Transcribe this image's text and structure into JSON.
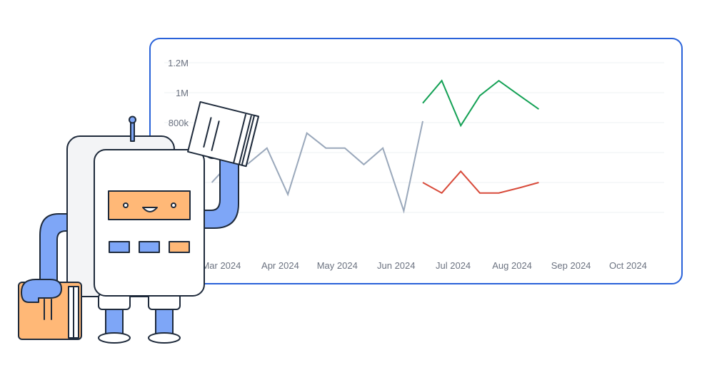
{
  "chart_data": {
    "type": "line",
    "title": "",
    "xlabel": "",
    "ylabel": "",
    "y_ticks": [
      "1.2M",
      "1M",
      "800k"
    ],
    "x_ticks": [
      "Mar 2024",
      "Apr 2024",
      "May 2024",
      "Jun 2024",
      "Jul 2024",
      "Aug 2024",
      "Sep 2024",
      "Oct 2024"
    ],
    "ylim": [
      0,
      1200000
    ],
    "grid": true,
    "legend": "none",
    "series": [
      {
        "color": "#9aa8bb",
        "points": [
          [
            "2024-02-25",
            400000
          ],
          [
            "2024-03-05",
            525000
          ],
          [
            "2024-03-15",
            525000
          ],
          [
            "2024-03-25",
            630000
          ],
          [
            "2024-04-05",
            320000
          ],
          [
            "2024-04-15",
            730000
          ],
          [
            "2024-04-25",
            630000
          ],
          [
            "2024-05-05",
            630000
          ],
          [
            "2024-05-15",
            520000
          ],
          [
            "2024-05-25",
            630000
          ],
          [
            "2024-06-05",
            210000
          ],
          [
            "2024-06-15",
            810000
          ]
        ]
      },
      {
        "color": "#14a155",
        "points": [
          [
            "2024-06-15",
            930000
          ],
          [
            "2024-06-25",
            1080000
          ],
          [
            "2024-07-05",
            780000
          ],
          [
            "2024-07-15",
            980000
          ],
          [
            "2024-07-25",
            1080000
          ],
          [
            "2024-08-05",
            980000
          ],
          [
            "2024-08-15",
            890000
          ]
        ]
      },
      {
        "color": "#d84a3a",
        "points": [
          [
            "2024-06-15",
            400000
          ],
          [
            "2024-06-25",
            330000
          ],
          [
            "2024-07-05",
            475000
          ],
          [
            "2024-07-15",
            330000
          ],
          [
            "2024-07-25",
            330000
          ],
          [
            "2024-08-05",
            365000
          ],
          [
            "2024-08-15",
            400000
          ]
        ]
      }
    ]
  },
  "colors": {
    "card_border": "#2962d9",
    "robot_blue": "#7ea6f7",
    "robot_orange": "#ffb877",
    "outline": "#1e2a3b"
  }
}
